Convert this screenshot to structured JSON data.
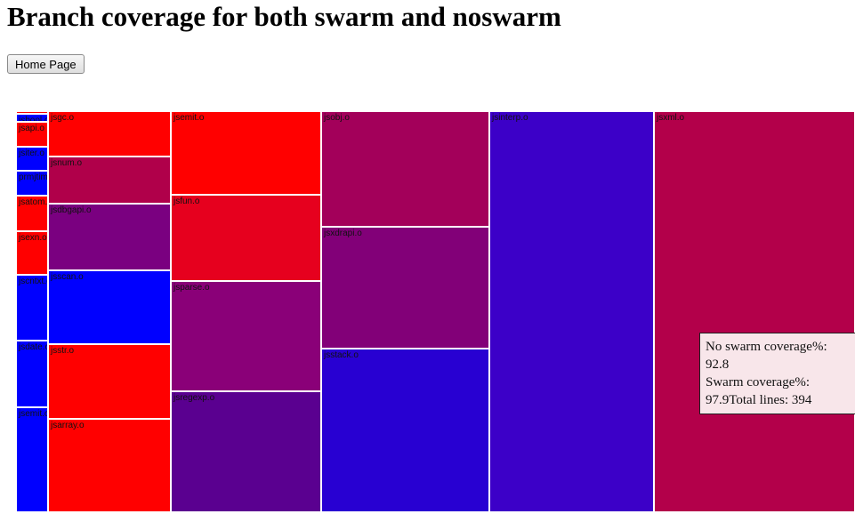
{
  "page": {
    "title": "Branch coverage for both swarm and noswarm",
    "home_button_label": "Home Page"
  },
  "colors": {
    "scale_low": "#ff0000",
    "scale_high": "#0000ff",
    "cell_border": "#ffffff",
    "tooltip_bg": "#f8e6ea"
  },
  "tooltip": {
    "noswarm_label": "No swarm coverage%:",
    "noswarm_value": "92.8",
    "swarm_label": "Swarm coverage%:",
    "swarm_value_and_lines": "97.9Total lines: 394"
  },
  "chart_data": {
    "type": "treemap",
    "title": "Branch coverage for both swarm and noswarm",
    "legend": "none",
    "cells": [
      {
        "label": "jsprvtd.o",
        "color": "#ff0000"
      },
      {
        "label": "jsbool.o",
        "color": "#0000ff"
      },
      {
        "label": "jsapi.o",
        "color": "#ff0000"
      },
      {
        "label": "jsiter.o",
        "color": "#0000ff"
      },
      {
        "label": "prmjtime.o",
        "color": "#0000ff"
      },
      {
        "label": "jsatom.o",
        "color": "#ff0000"
      },
      {
        "label": "jsexn.o",
        "color": "#ff0000"
      },
      {
        "label": "jscntxt.o",
        "color": "#0000ff"
      },
      {
        "label": "jsdate.o",
        "color": "#0000ff"
      },
      {
        "label": "jsemit.o",
        "color": "#0000ff"
      },
      {
        "label": "jsgc.o",
        "color": "#ff0000"
      },
      {
        "label": "jsnum.o",
        "color": "#b0004a"
      },
      {
        "label": "jsdbgapi.o",
        "color": "#7a0080"
      },
      {
        "label": "jsscan.o",
        "color": "#0000ff"
      },
      {
        "label": "jsstr.o",
        "color": "#ff0000"
      },
      {
        "label": "jsarray.o",
        "color": "#ff0000"
      },
      {
        "label": "jsemit.o",
        "color": "#ff0000"
      },
      {
        "label": "jsfun.o",
        "color": "#e6001e"
      },
      {
        "label": "jsparse.o",
        "color": "#8a0078"
      },
      {
        "label": "jsregexp.o",
        "color": "#5a0090"
      },
      {
        "label": "jsobj.o",
        "color": "#a3005a"
      },
      {
        "label": "jsxdrapi.o",
        "color": "#820078"
      },
      {
        "label": "jsstack.o",
        "color": "#2800d2"
      },
      {
        "label": "jsinterp.o",
        "color": "#3c00c8"
      },
      {
        "label": "jsxml.o",
        "color": "#b3004a"
      }
    ]
  }
}
